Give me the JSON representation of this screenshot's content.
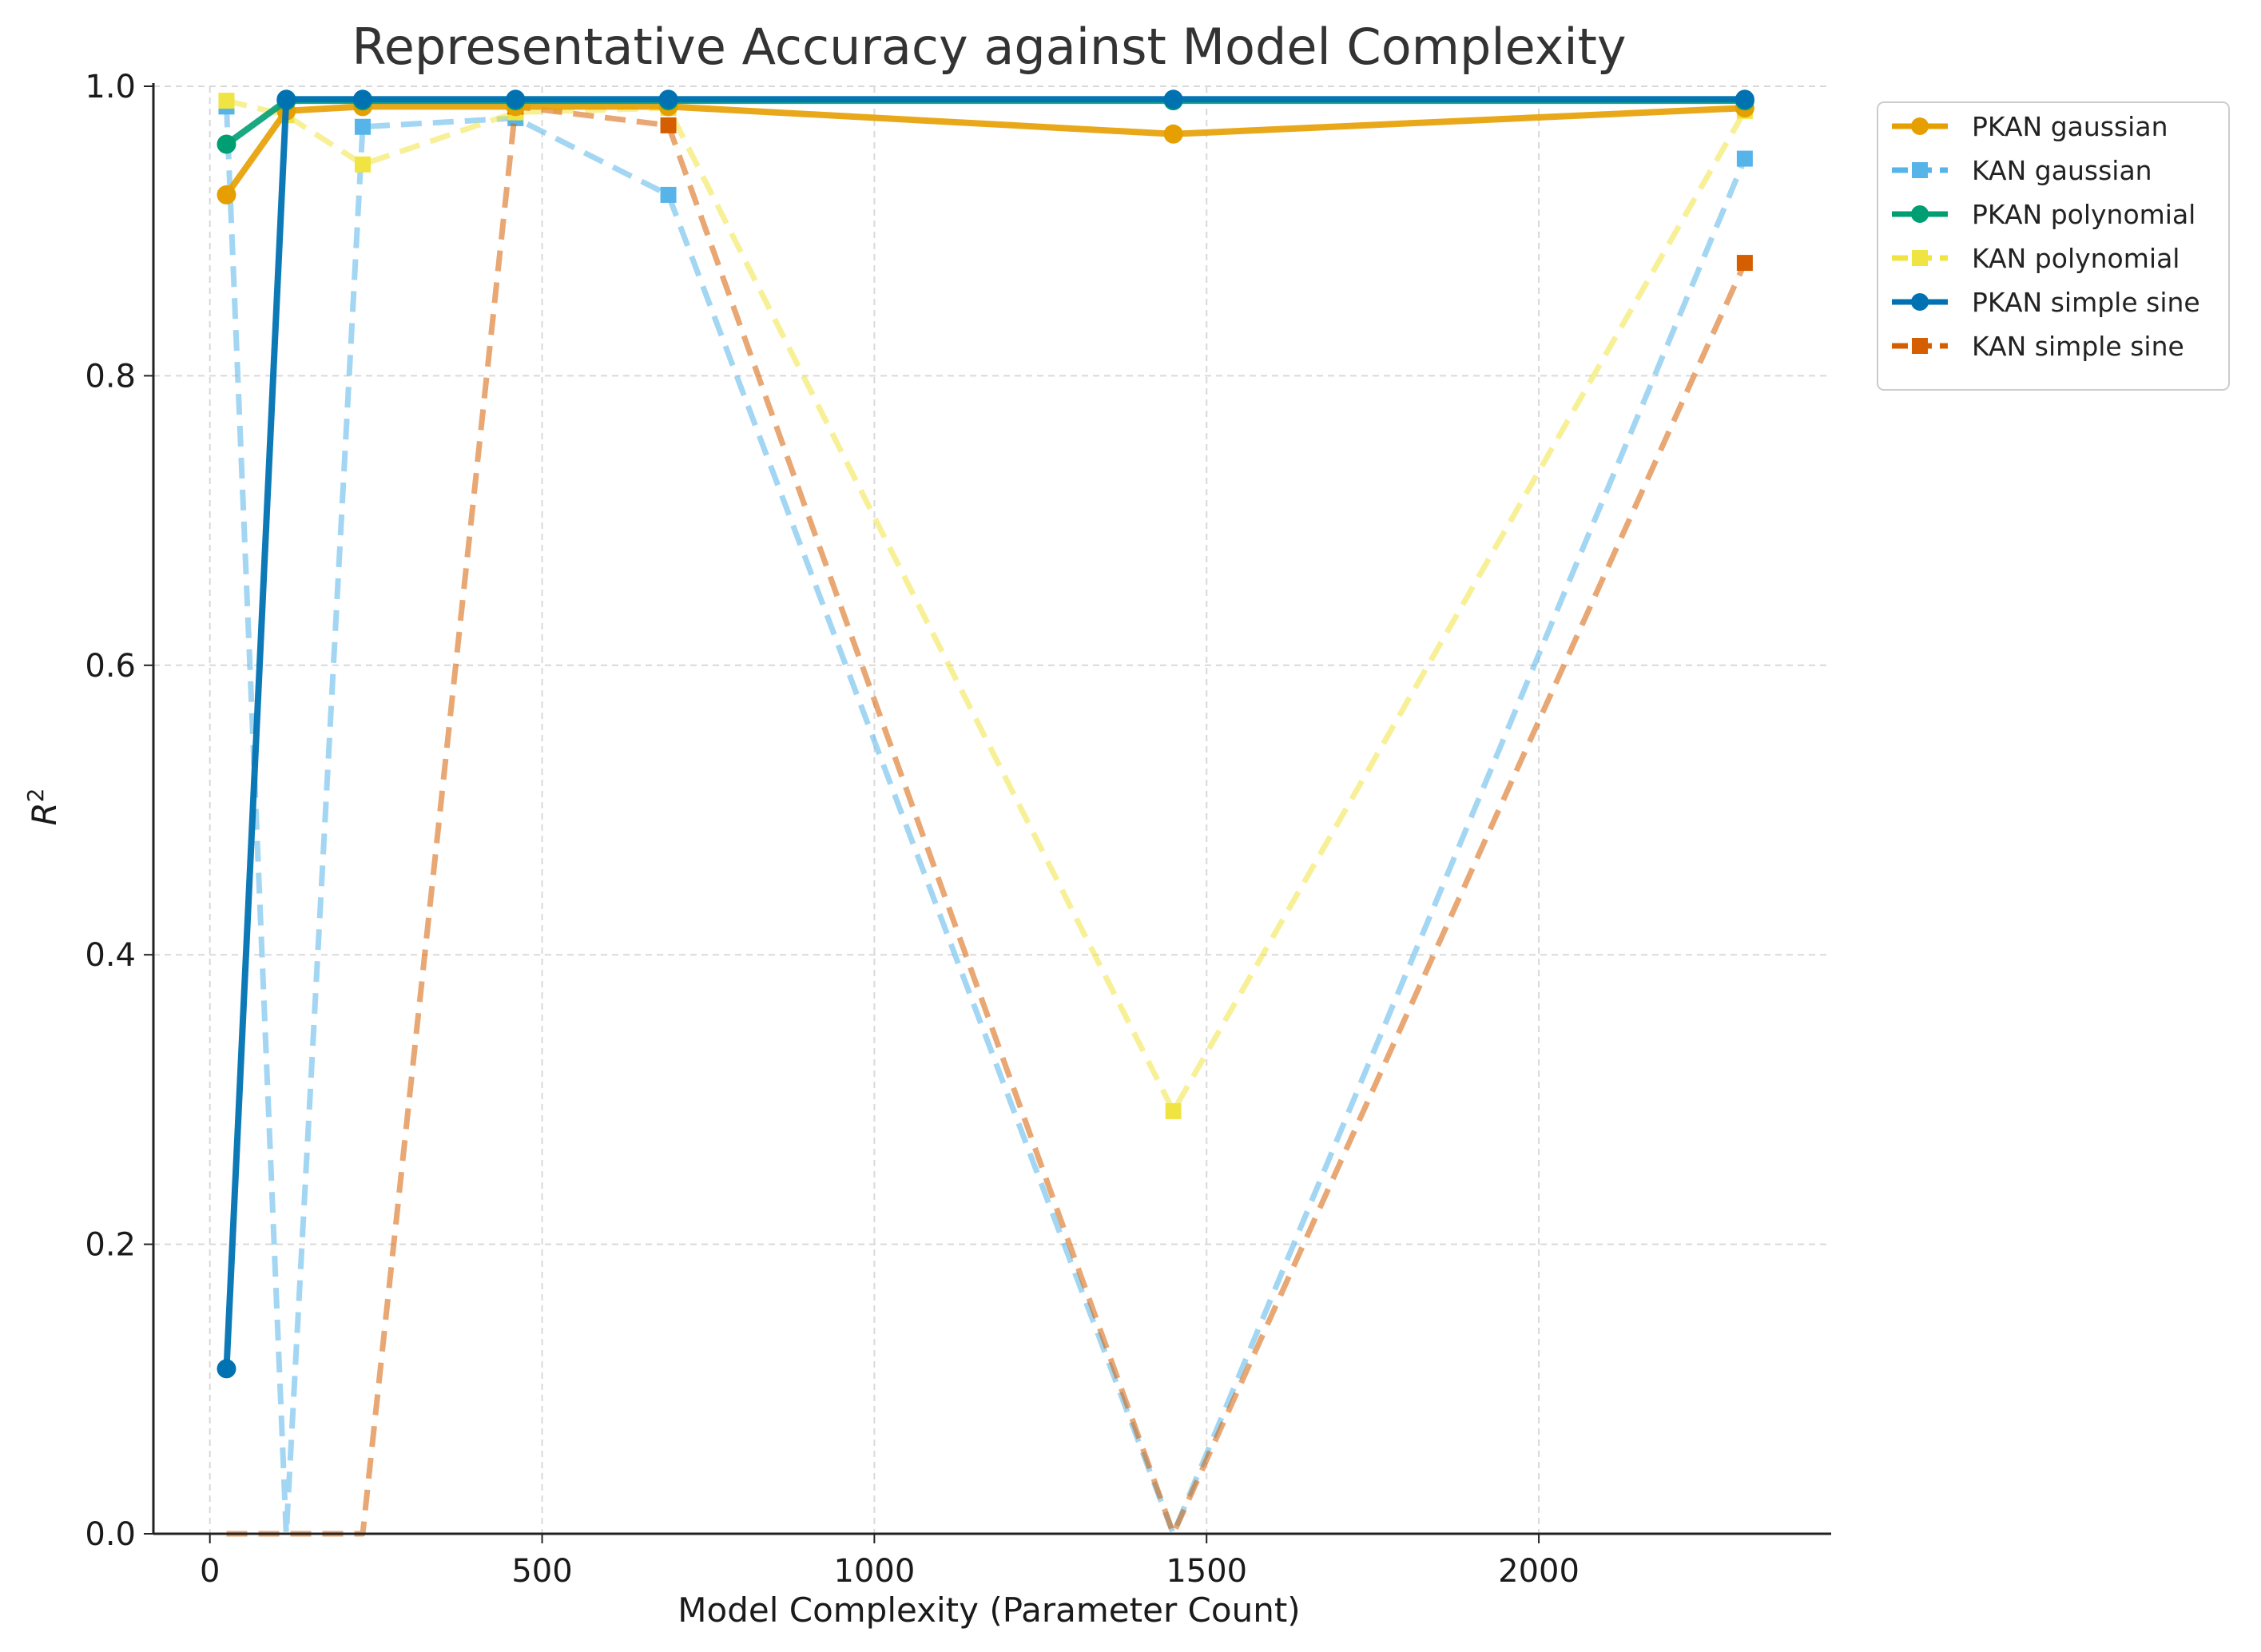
{
  "chart_data": {
    "type": "line",
    "title": "Representative Accuracy against Model Complexity",
    "xlabel": "Model Complexity (Parameter Count)",
    "ylabel": "R",
    "ylabel_superscript": "2",
    "xlim": [
      -85,
      2440
    ],
    "ylim": [
      0.0,
      1.0
    ],
    "xticks": [
      0,
      500,
      1000,
      1500,
      2000
    ],
    "yticks": [
      0.0,
      0.2,
      0.4,
      0.6,
      0.8,
      1.0
    ],
    "ytick_labels": [
      "0.0",
      "0.2",
      "0.4",
      "0.6",
      "0.8",
      "1.0"
    ],
    "grid": true,
    "legend_position": "outside-right-top",
    "x": [
      25,
      115,
      230,
      460,
      690,
      1450,
      2310
    ],
    "series": [
      {
        "name": "PKAN gaussian",
        "color": "#E69F00",
        "style": "solid",
        "marker": "circle",
        "values": [
          0.925,
          0.983,
          0.986,
          0.986,
          0.986,
          0.967,
          0.985
        ]
      },
      {
        "name": "KAN gaussian",
        "color": "#56B4E9",
        "style": "dashed",
        "marker": "square",
        "values": [
          0.986,
          0.0,
          0.972,
          0.978,
          0.925,
          0.0,
          0.95
        ]
      },
      {
        "name": "PKAN polynomial",
        "color": "#009E73",
        "style": "solid",
        "marker": "circle",
        "values": [
          0.96,
          0.99,
          0.99,
          0.99,
          0.99,
          0.99,
          0.99
        ]
      },
      {
        "name": "KAN polynomial",
        "color": "#F0E442",
        "style": "dashed",
        "marker": "square",
        "values": [
          0.99,
          0.98,
          0.946,
          0.982,
          0.985,
          0.292,
          0.983
        ]
      },
      {
        "name": "PKAN simple sine",
        "color": "#0072B2",
        "style": "solid",
        "marker": "circle",
        "values": [
          0.114,
          0.991,
          0.991,
          0.991,
          0.991,
          0.991,
          0.991
        ]
      },
      {
        "name": "KAN simple sine",
        "color": "#D55E00",
        "style": "dashed",
        "marker": "square",
        "values": [
          0.0,
          0.0,
          0.0,
          0.986,
          0.973,
          0.0,
          0.878
        ]
      }
    ]
  }
}
